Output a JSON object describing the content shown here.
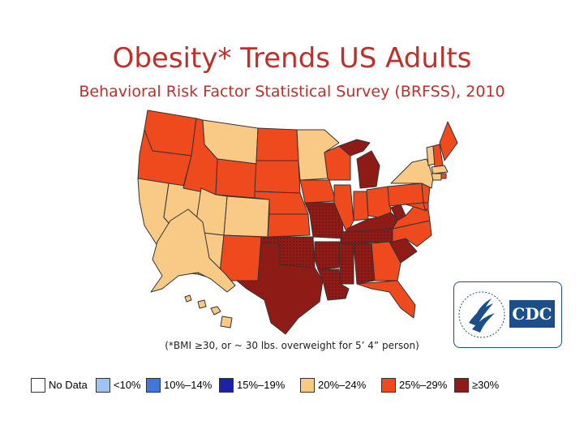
{
  "header": {
    "title": "Obesity* Trends US Adults",
    "subtitle": "Behavioral Risk Factor Statistical Survey (BRFSS), 2010"
  },
  "footnote": "(*BMI ≥30, or ~ 30 lbs. overweight for 5’ 4” person)",
  "colors": {
    "no_data": "#ffffff",
    "lt10": "#9fc5ee",
    "r10_14": "#3f78d8",
    "r15_19": "#1c21a8",
    "r20_24": "#f9c986",
    "r25_29": "#ef4a1d",
    "ge30": "#8f1b17"
  },
  "legend": {
    "items": [
      {
        "label": "No Data",
        "color": "#ffffff"
      },
      {
        "label": "<10%",
        "color": "#9fc5ee"
      },
      {
        "label": "10%–14%",
        "color": "#3f78d8"
      },
      {
        "label": "15%–19%",
        "color": "#1c21a8"
      },
      {
        "label": "20%–24%",
        "color": "#f9c986"
      },
      {
        "label": "25%–29%",
        "color": "#ef4a1d"
      },
      {
        "label": "≥30%",
        "color": "#8f1b17"
      }
    ]
  },
  "logo": {
    "text": "CDC",
    "icon": "hhs-eagle-seal-icon"
  }
}
